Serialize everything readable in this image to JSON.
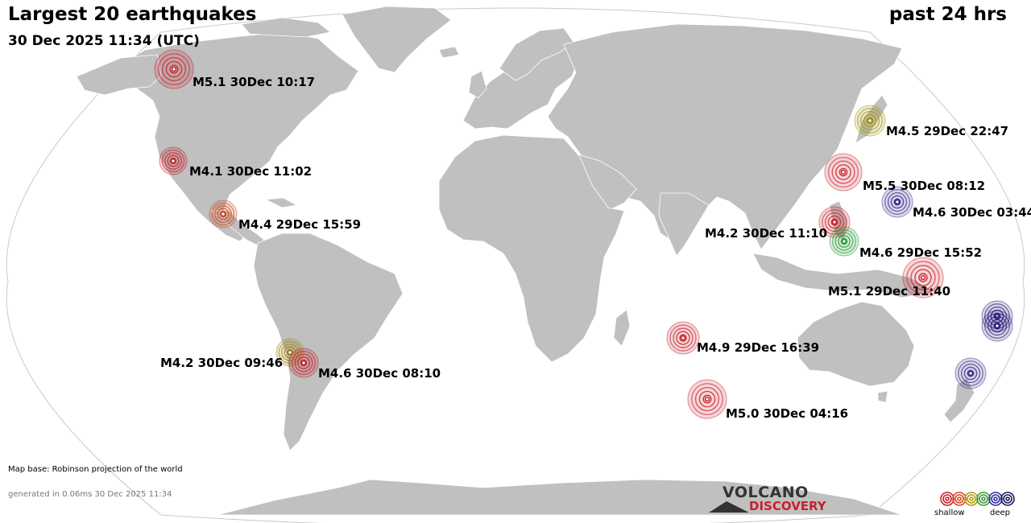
{
  "header": {
    "title": "Largest 20 earthquakes",
    "period": "past 24 hrs",
    "timestamp": "30 Dec 2025 11:34 (UTC)"
  },
  "footer": {
    "map_base": "Map base: Robinson projection of the world",
    "generated": "generated in 0.06ms 30 Dec 2025 11:34"
  },
  "logo": {
    "line1": "VOLCANO",
    "line2": "DISCOVERY"
  },
  "legend": {
    "shallow": "shallow",
    "deep": "deep",
    "colors": [
      "#c8202a",
      "#d04a20",
      "#b09a10",
      "#3a9a3a",
      "#3030a0",
      "#1a1a60"
    ]
  },
  "colors": {
    "ocean": "#ffffff",
    "land": "#c0c0c0",
    "border": "#ffffff"
  },
  "quakes": {
    "q1": {
      "label": "M5.1 30Dec 10:17",
      "color": "#c8202a"
    },
    "q2": {
      "label": "M4.1 30Dec 11:02",
      "color": "#c8202a"
    },
    "q3": {
      "label": "M4.4 29Dec 15:59",
      "color": "#d04a20"
    },
    "q4": {
      "label": "M4.2 30Dec 09:46",
      "color": "#a08010"
    },
    "q5": {
      "label": "M4.6 30Dec 08:10",
      "color": "#c8202a"
    },
    "q6": {
      "label": "M4.9 29Dec 16:39",
      "color": "#c8202a"
    },
    "q7": {
      "label": "M5.0 30Dec 04:16",
      "color": "#c8202a"
    },
    "q8": {
      "label": "M4.5 29Dec 22:47",
      "color": "#a09010"
    },
    "q9": {
      "label": "M5.5 30Dec 08:12",
      "color": "#c8202a"
    },
    "q10": {
      "label": "M4.6 30Dec 03:44",
      "color": "#3a2a8a"
    },
    "q11": {
      "label": "M4.2 30Dec 11:10",
      "color": "#c8202a"
    },
    "q12": {
      "label": "M4.6 29Dec 15:52",
      "color": "#2a9a3a"
    },
    "q13": {
      "label": "M5.1 29Dec 11:40",
      "color": "#c8202a"
    },
    "q14": {
      "label": "",
      "color": "#2a1a7a"
    },
    "q15": {
      "label": "",
      "color": "#2a1a7a"
    },
    "q16": {
      "label": "",
      "color": "#3a2a8a"
    }
  }
}
